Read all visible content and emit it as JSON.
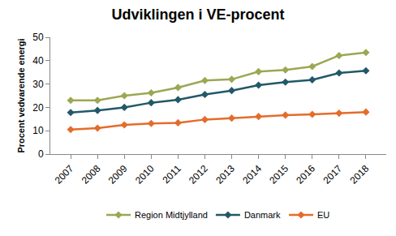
{
  "chart_data": {
    "type": "line",
    "title": "Udviklingen i VE-procent",
    "y_label": "Procent vedvarende energi",
    "categories": [
      "2007",
      "2008",
      "2009",
      "2010",
      "2011",
      "2012",
      "2013",
      "2014",
      "2015",
      "2016",
      "2017",
      "2018"
    ],
    "series": [
      {
        "name": "Region Midtjylland",
        "color": "#9ba852",
        "values": [
          23,
          23,
          25,
          26.2,
          28.5,
          31.5,
          32,
          35.3,
          36,
          37.5,
          42.2,
          43.5
        ]
      },
      {
        "name": "Danmark",
        "color": "#215968",
        "values": [
          17.8,
          18.7,
          20,
          22,
          23.3,
          25.5,
          27.2,
          29.5,
          30.8,
          31.8,
          34.7,
          35.7
        ]
      },
      {
        "name": "EU",
        "color": "#e46c2a",
        "values": [
          10.5,
          11.1,
          12.5,
          13.1,
          13.4,
          14.8,
          15.4,
          16.1,
          16.7,
          17,
          17.5,
          18
        ]
      }
    ],
    "ylim": [
      0,
      50
    ],
    "yticks": [
      0,
      10,
      20,
      30,
      40,
      50
    ],
    "grid": false,
    "legend": "bottom",
    "marker": "diamond",
    "line_style": "solid"
  }
}
